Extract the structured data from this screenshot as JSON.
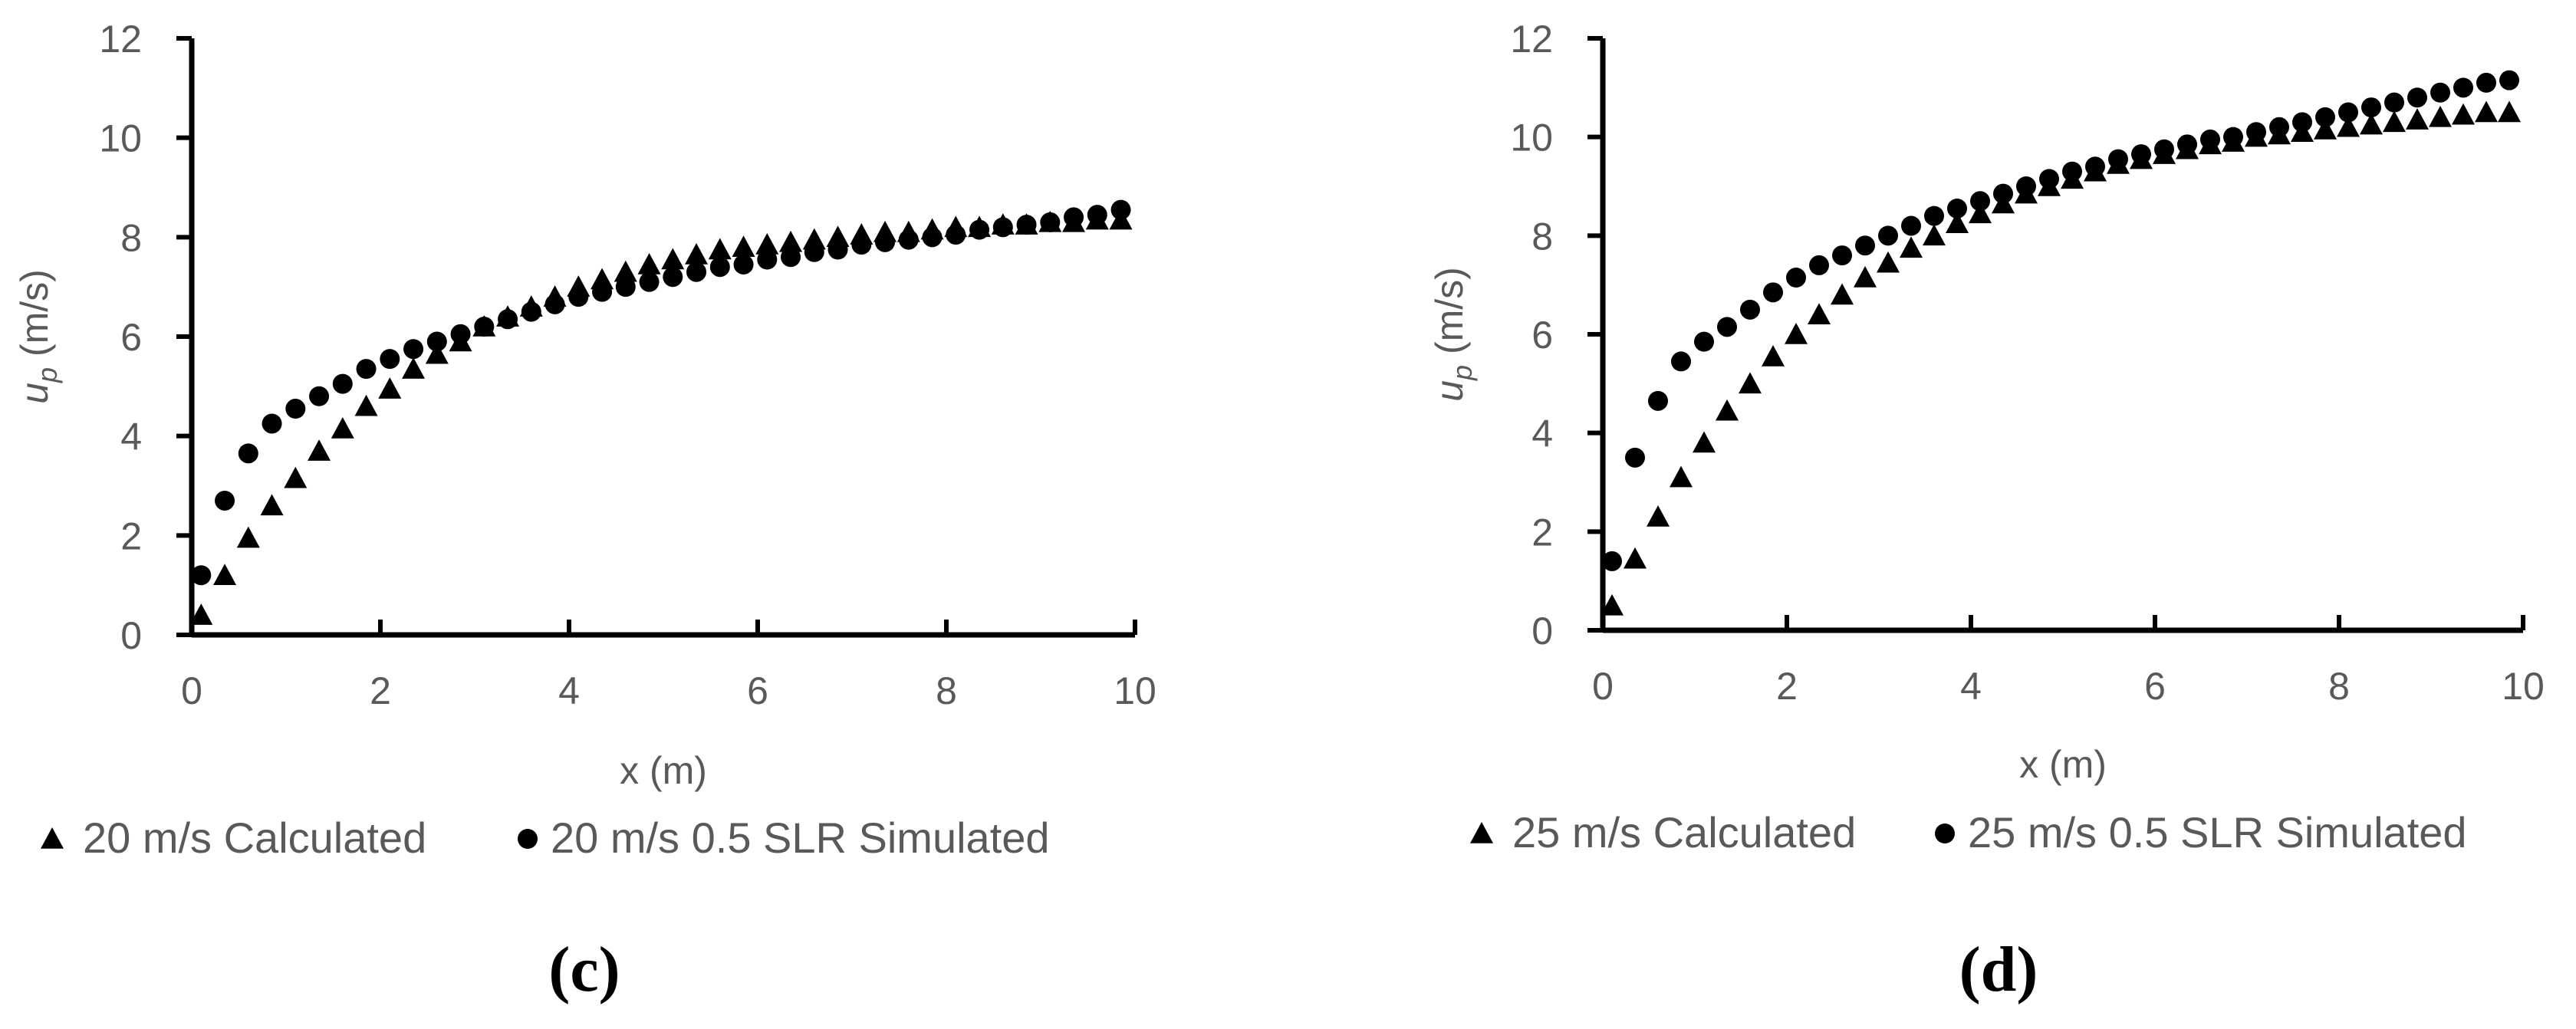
{
  "chart_data": [
    {
      "type": "scatter",
      "panel_label": "(c)",
      "xlabel": "x (m)",
      "ylabel_main": "u",
      "ylabel_sub": "p",
      "ylabel_unit": " (m/s)",
      "xlim": [
        0,
        10
      ],
      "ylim": [
        0,
        12
      ],
      "xticks": [
        0,
        2,
        4,
        6,
        8,
        10
      ],
      "yticks": [
        0,
        2,
        4,
        6,
        8,
        10,
        12
      ],
      "grid": false,
      "legend_position": "bottom",
      "series": [
        {
          "name": "20 m/s Calculated",
          "marker": "triangle",
          "x": [
            0.1,
            0.35,
            0.6,
            0.85,
            1.1,
            1.35,
            1.6,
            1.85,
            2.1,
            2.35,
            2.6,
            2.85,
            3.1,
            3.35,
            3.6,
            3.85,
            4.1,
            4.35,
            4.6,
            4.85,
            5.1,
            5.35,
            5.6,
            5.85,
            6.1,
            6.35,
            6.6,
            6.85,
            7.1,
            7.35,
            7.6,
            7.85,
            8.1,
            8.35,
            8.6,
            8.85,
            9.1,
            9.35,
            9.6,
            9.85
          ],
          "y": [
            0.4,
            1.2,
            1.95,
            2.6,
            3.15,
            3.7,
            4.15,
            4.6,
            4.95,
            5.35,
            5.65,
            5.9,
            6.2,
            6.4,
            6.6,
            6.8,
            7.0,
            7.15,
            7.3,
            7.45,
            7.55,
            7.65,
            7.75,
            7.8,
            7.85,
            7.9,
            7.95,
            8.0,
            8.05,
            8.1,
            8.1,
            8.15,
            8.2,
            8.2,
            8.25,
            8.25,
            8.3,
            8.3,
            8.35,
            8.35
          ]
        },
        {
          "name": "20 m/s 0.5 SLR Simulated",
          "marker": "circle",
          "x": [
            0.1,
            0.35,
            0.6,
            0.85,
            1.1,
            1.35,
            1.6,
            1.85,
            2.1,
            2.35,
            2.6,
            2.85,
            3.1,
            3.35,
            3.6,
            3.85,
            4.1,
            4.35,
            4.6,
            4.85,
            5.1,
            5.35,
            5.6,
            5.85,
            6.1,
            6.35,
            6.6,
            6.85,
            7.1,
            7.35,
            7.6,
            7.85,
            8.1,
            8.35,
            8.6,
            8.85,
            9.1,
            9.35,
            9.6,
            9.85
          ],
          "y": [
            1.2,
            2.7,
            3.65,
            4.25,
            4.55,
            4.8,
            5.05,
            5.35,
            5.55,
            5.75,
            5.9,
            6.05,
            6.2,
            6.35,
            6.5,
            6.65,
            6.8,
            6.9,
            7.0,
            7.1,
            7.2,
            7.3,
            7.4,
            7.45,
            7.55,
            7.6,
            7.7,
            7.75,
            7.85,
            7.9,
            7.95,
            8.0,
            8.05,
            8.15,
            8.2,
            8.25,
            8.3,
            8.4,
            8.45,
            8.55
          ]
        }
      ]
    },
    {
      "type": "scatter",
      "panel_label": "(d)",
      "xlabel": "x (m)",
      "ylabel_main": "u",
      "ylabel_sub": "p",
      "ylabel_unit": " (m/s)",
      "xlim": [
        0,
        10
      ],
      "ylim": [
        0,
        12
      ],
      "xticks": [
        0,
        2,
        4,
        6,
        8,
        10
      ],
      "yticks": [
        0,
        2,
        4,
        6,
        8,
        10,
        12
      ],
      "grid": false,
      "legend_position": "bottom",
      "series": [
        {
          "name": "25 m/s Calculated",
          "marker": "triangle",
          "x": [
            0.1,
            0.35,
            0.6,
            0.85,
            1.1,
            1.35,
            1.6,
            1.85,
            2.1,
            2.35,
            2.6,
            2.85,
            3.1,
            3.35,
            3.6,
            3.85,
            4.1,
            4.35,
            4.6,
            4.85,
            5.1,
            5.35,
            5.6,
            5.85,
            6.1,
            6.35,
            6.6,
            6.85,
            7.1,
            7.35,
            7.6,
            7.85,
            8.1,
            8.35,
            8.6,
            8.85,
            9.1,
            9.35,
            9.6,
            9.85
          ],
          "y": [
            0.5,
            1.45,
            2.3,
            3.1,
            3.8,
            4.45,
            5.0,
            5.55,
            6.0,
            6.4,
            6.8,
            7.15,
            7.45,
            7.75,
            8.0,
            8.25,
            8.45,
            8.65,
            8.85,
            9.0,
            9.15,
            9.3,
            9.45,
            9.55,
            9.65,
            9.75,
            9.85,
            9.9,
            10.0,
            10.05,
            10.1,
            10.15,
            10.2,
            10.25,
            10.3,
            10.35,
            10.4,
            10.45,
            10.5,
            10.5
          ]
        },
        {
          "name": "25 m/s 0.5 SLR Simulated",
          "marker": "circle",
          "x": [
            0.1,
            0.35,
            0.6,
            0.85,
            1.1,
            1.35,
            1.6,
            1.85,
            2.1,
            2.35,
            2.6,
            2.85,
            3.1,
            3.35,
            3.6,
            3.85,
            4.1,
            4.35,
            4.6,
            4.85,
            5.1,
            5.35,
            5.6,
            5.85,
            6.1,
            6.35,
            6.6,
            6.85,
            7.1,
            7.35,
            7.6,
            7.85,
            8.1,
            8.35,
            8.6,
            8.85,
            9.1,
            9.35,
            9.6,
            9.85
          ],
          "y": [
            1.4,
            3.5,
            4.65,
            5.45,
            5.85,
            6.15,
            6.5,
            6.85,
            7.15,
            7.4,
            7.6,
            7.8,
            8.0,
            8.2,
            8.4,
            8.55,
            8.7,
            8.85,
            9.0,
            9.15,
            9.3,
            9.4,
            9.55,
            9.65,
            9.75,
            9.85,
            9.95,
            10.0,
            10.1,
            10.2,
            10.3,
            10.4,
            10.5,
            10.6,
            10.7,
            10.8,
            10.9,
            11.0,
            11.1,
            11.15
          ]
        }
      ]
    }
  ]
}
